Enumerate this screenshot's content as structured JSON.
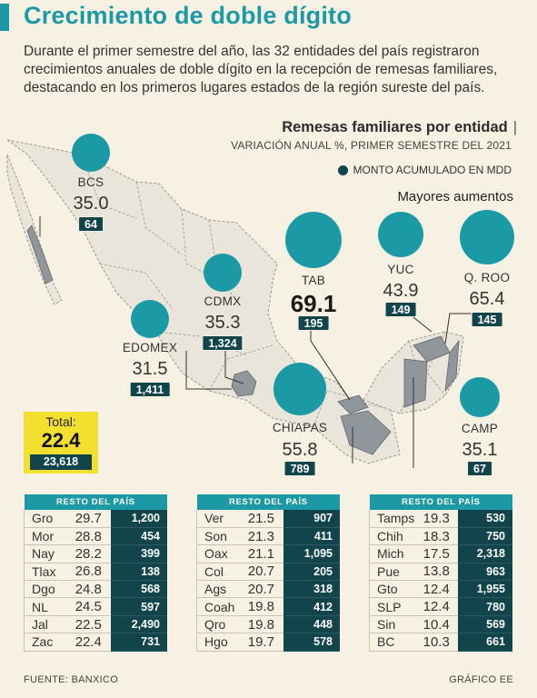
{
  "title": "Crecimiento de doble dígito",
  "intro": "Durante el primer semestre del año, las 32 entidades del país registraron crecimientos anuales de doble dígito en la recepción de remesas familiares, destacando en los primeros lugares estados de la región sureste del país.",
  "chart_title": "Remesas familiares por entidad",
  "chart_title_sep": "|",
  "chart_subtitle": "VARIACIÓN ANUAL %, PRIMER SEMESTRE DEL 2021",
  "legend_label": "MONTO ACUMULADO EN MDD",
  "top_label": "Mayores aumentos",
  "colors": {
    "accent": "#1b9aa6",
    "dark": "#11454b",
    "highlight": "#f3df2e",
    "background": "#f6f1e3"
  },
  "chart_data": {
    "type": "bubble-map",
    "highlighted": [
      {
        "state": "BCS",
        "pct": "35.0",
        "mdd": "64"
      },
      {
        "state": "CDMX",
        "pct": "35.3",
        "mdd": "1,324"
      },
      {
        "state": "EDOMEX",
        "pct": "31.5",
        "mdd": "1,411"
      },
      {
        "state": "TAB",
        "pct": "69.1",
        "mdd": "195"
      },
      {
        "state": "YUC",
        "pct": "43.9",
        "mdd": "149"
      },
      {
        "state": "Q. ROO",
        "pct": "65.4",
        "mdd": "145"
      },
      {
        "state": "CHIAPAS",
        "pct": "55.8",
        "mdd": "789"
      },
      {
        "state": "CAMP",
        "pct": "35.1",
        "mdd": "67"
      }
    ],
    "total": {
      "label": "Total:",
      "pct": "22.4",
      "mdd": "23,618"
    },
    "rest_header": "RESTO DEL PAÍS",
    "rest_tables": [
      [
        {
          "state": "Gro",
          "pct": "29.7",
          "mdd": "1,200"
        },
        {
          "state": "Mor",
          "pct": "28.8",
          "mdd": "454"
        },
        {
          "state": "Nay",
          "pct": "28.2",
          "mdd": "399"
        },
        {
          "state": "Tlax",
          "pct": "26.8",
          "mdd": "138"
        },
        {
          "state": "Dgo",
          "pct": "24.8",
          "mdd": "568"
        },
        {
          "state": "NL",
          "pct": "24.5",
          "mdd": "597"
        },
        {
          "state": "Jal",
          "pct": "22.5",
          "mdd": "2,490"
        },
        {
          "state": "Zac",
          "pct": "22.4",
          "mdd": "731"
        }
      ],
      [
        {
          "state": "Ver",
          "pct": "21.5",
          "mdd": "907"
        },
        {
          "state": "Son",
          "pct": "21.3",
          "mdd": "411"
        },
        {
          "state": "Oax",
          "pct": "21.1",
          "mdd": "1,095"
        },
        {
          "state": "Col",
          "pct": "20.7",
          "mdd": "205"
        },
        {
          "state": "Ags",
          "pct": "20.7",
          "mdd": "318"
        },
        {
          "state": "Coah",
          "pct": "19.8",
          "mdd": "412"
        },
        {
          "state": "Qro",
          "pct": "19.8",
          "mdd": "448"
        },
        {
          "state": "Hgo",
          "pct": "19.7",
          "mdd": "578"
        }
      ],
      [
        {
          "state": "Tamps",
          "pct": "19.3",
          "mdd": "530"
        },
        {
          "state": "Chih",
          "pct": "18.3",
          "mdd": "750"
        },
        {
          "state": "Mich",
          "pct": "17.5",
          "mdd": "2,318"
        },
        {
          "state": "Pue",
          "pct": "13.8",
          "mdd": "963"
        },
        {
          "state": "Gto",
          "pct": "12.4",
          "mdd": "1,955"
        },
        {
          "state": "SLP",
          "pct": "12.4",
          "mdd": "780"
        },
        {
          "state": "Sin",
          "pct": "10.4",
          "mdd": "569"
        },
        {
          "state": "BC",
          "pct": "10.3",
          "mdd": "661"
        }
      ]
    ]
  },
  "source": "FUENTE: BANXICO",
  "credit": "GRÁFICO EE"
}
